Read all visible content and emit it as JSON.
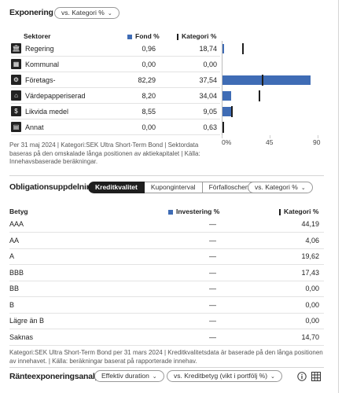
{
  "exponering": {
    "title": "Exponering",
    "filter": "vs. Kategori %",
    "headers": {
      "sector": "Sektorer",
      "fund": "Fond %",
      "category": "Kategori %"
    },
    "rows": [
      {
        "label": "Regering",
        "fund": "0,96",
        "category": "18,74",
        "fund_value": 0.96,
        "category_value": 18.74,
        "icon": "government-icon"
      },
      {
        "label": "Kommunal",
        "fund": "0,00",
        "category": "0,00",
        "fund_value": 0.0,
        "category_value": 0.0,
        "icon": "municipal-icon"
      },
      {
        "label": "Företags-",
        "fund": "82,29",
        "category": "37,54",
        "fund_value": 82.29,
        "category_value": 37.54,
        "icon": "corporate-icon"
      },
      {
        "label": "Värdepapperiserad",
        "fund": "8,20",
        "category": "34,04",
        "fund_value": 8.2,
        "category_value": 34.04,
        "icon": "securitized-icon"
      },
      {
        "label": "Likvida medel",
        "fund": "8,55",
        "category": "9,05",
        "fund_value": 8.55,
        "category_value": 9.05,
        "icon": "cash-icon"
      },
      {
        "label": "Annat",
        "fund": "0,00",
        "category": "0,63",
        "fund_value": 0.0,
        "category_value": 0.63,
        "icon": "other-icon"
      }
    ],
    "axis_ticks": [
      "0%",
      "45",
      "90"
    ],
    "axis_max": 90,
    "note": "Per 31 maj 2024 | Kategori:SEK Ultra Short-Term Bond | Sektordata baseras på den omskalade långa positionen av aktiekapitalet | Källa: Innehavsbaserade beräkningar."
  },
  "obligation": {
    "title": "Obligationsuppdelning",
    "tabs": [
      "Kreditkvalitet",
      "Kuponginterval",
      "Förfalloschema"
    ],
    "active_tab": 0,
    "filter": "vs. Kategori %",
    "headers": {
      "rating": "Betyg",
      "investment": "Investering %",
      "category": "Kategori %"
    },
    "rows": [
      {
        "label": "AAA",
        "investment": "—",
        "category": "44,19"
      },
      {
        "label": "AA",
        "investment": "—",
        "category": "4,06"
      },
      {
        "label": "A",
        "investment": "—",
        "category": "19,62"
      },
      {
        "label": "BBB",
        "investment": "—",
        "category": "17,43"
      },
      {
        "label": "BB",
        "investment": "—",
        "category": "0,00"
      },
      {
        "label": "B",
        "investment": "—",
        "category": "0,00"
      },
      {
        "label": "Lägre än B",
        "investment": "—",
        "category": "0,00"
      },
      {
        "label": "Saknas",
        "investment": "—",
        "category": "14,70"
      }
    ],
    "note": "Kategori:SEK Ultra Short-Term Bond per 31 mars 2024 | Kreditkvalitetsdata är baserade på den långa positionen av innehavet. | Källa: beräkningar baserat på rapporterade innehav."
  },
  "ranta": {
    "title": "Ränteexponeringsanalys",
    "filter1": "Effektiv duration",
    "filter2": "vs. Kreditbetyg (vikt i portfölj %)"
  },
  "colors": {
    "fund": "#3f6cb5",
    "category": "#1e1e1e"
  }
}
